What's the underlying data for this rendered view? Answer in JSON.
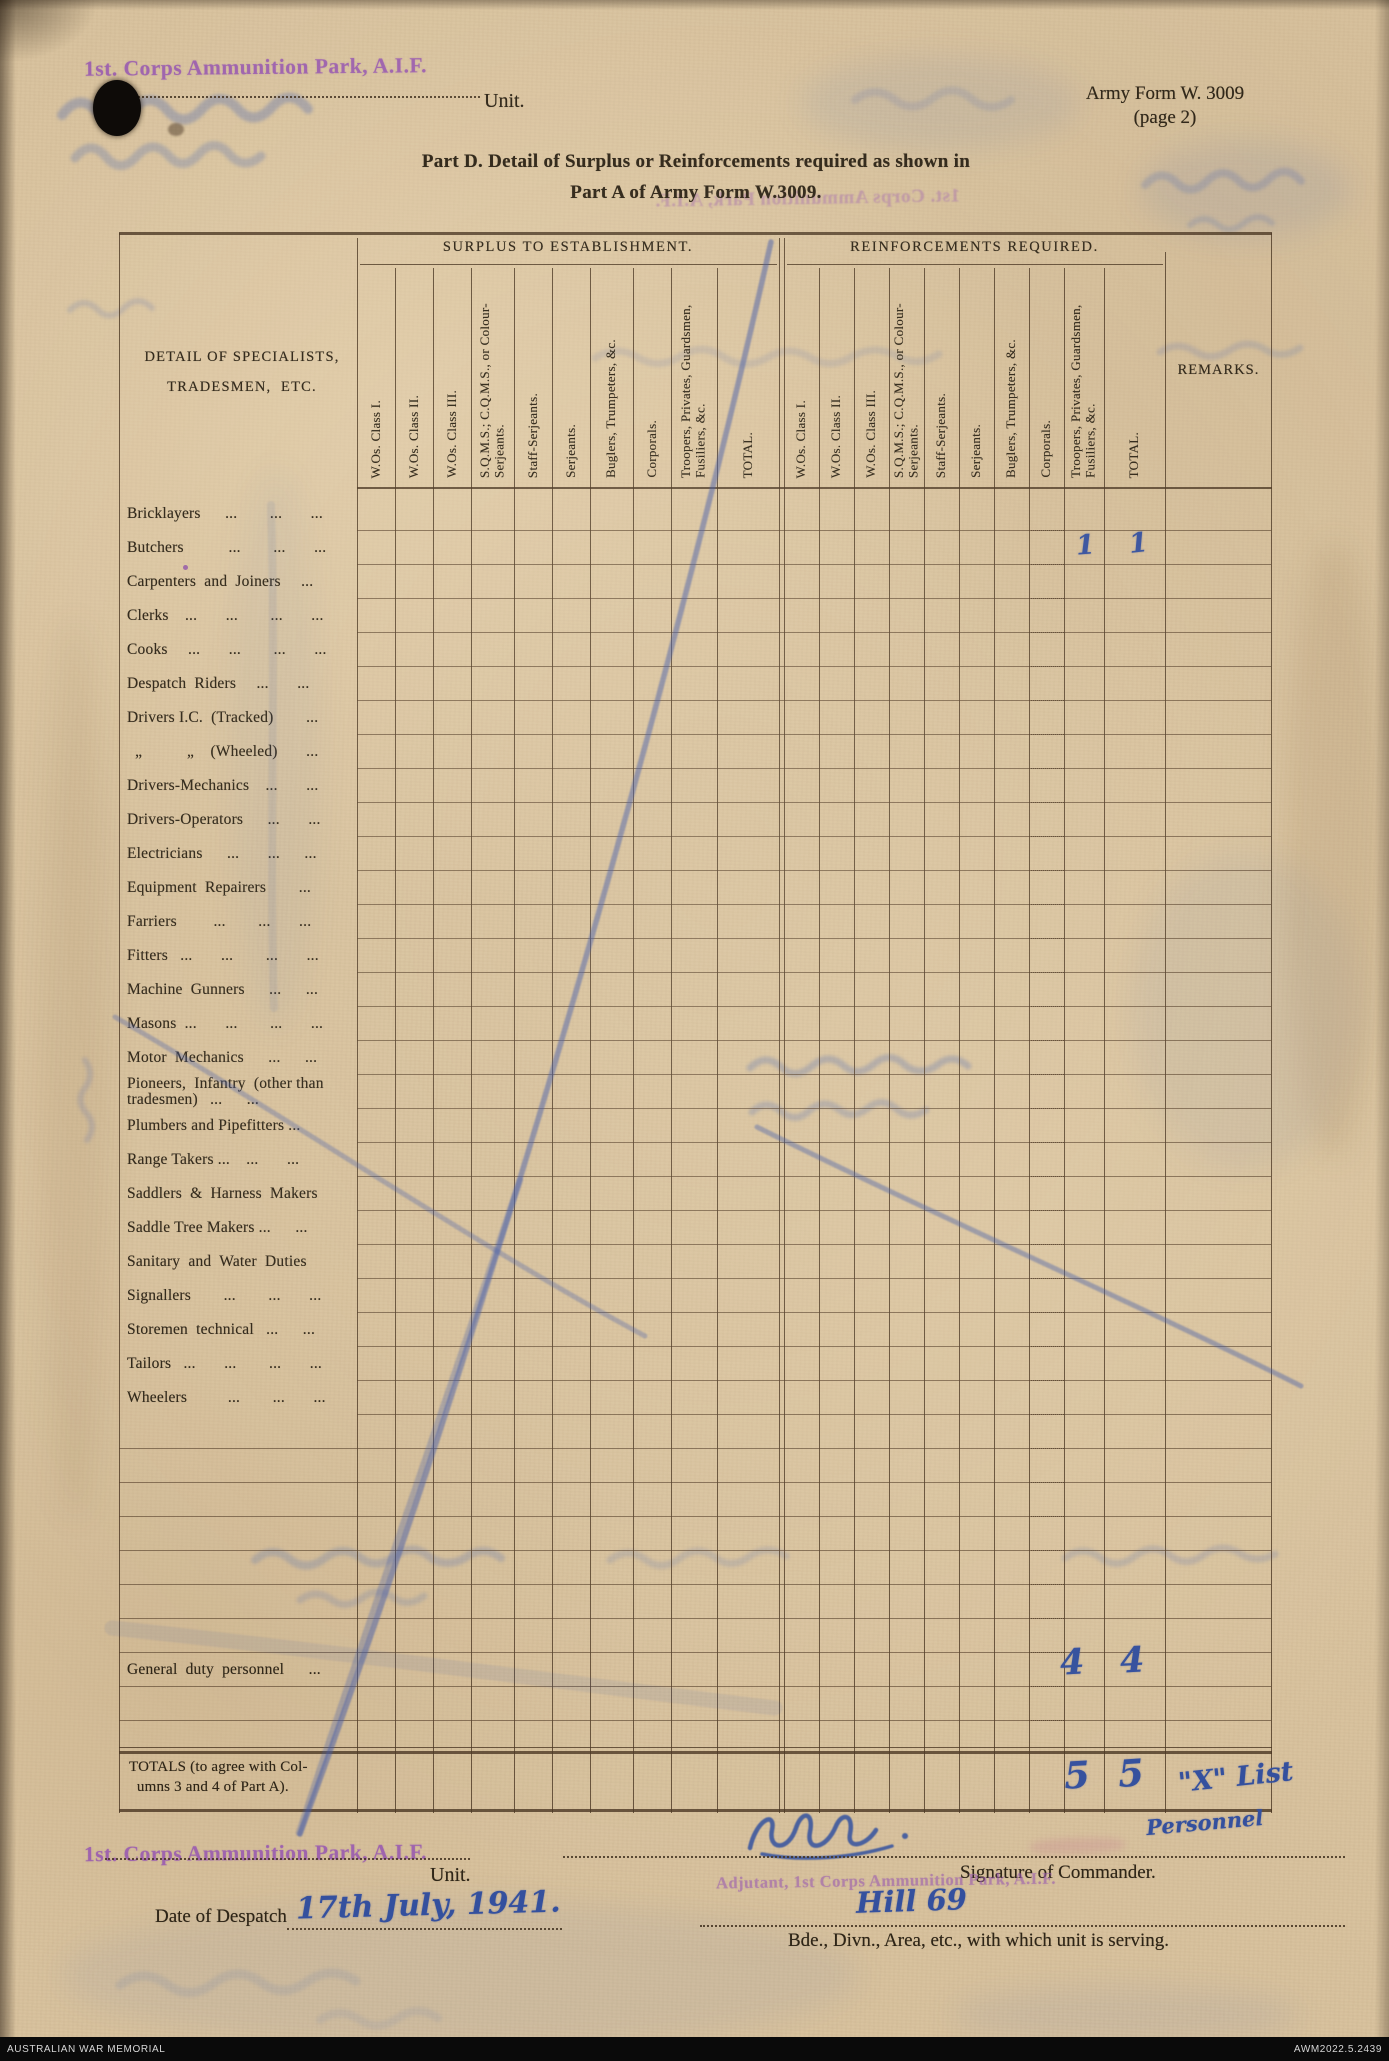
{
  "header": {
    "unit_stamp": "1st. Corps Ammunition Park, A.I.F.",
    "unit_label": "Unit.",
    "form_number": "Army Form W. 3009",
    "form_page": "(page 2)",
    "title_line1": "Part D.  Detail of Surplus or Reinforcements required as shown in",
    "title_line2": "Part A of Army Form W.3009."
  },
  "table": {
    "group_surplus": "SURPLUS TO ESTABLISHMENT.",
    "group_reinforcements": "REINFORCEMENTS REQUIRED.",
    "detail_header": "DETAIL OF SPECIALISTS,\nTRADESMEN,  ETC.",
    "remarks_header": "REMARKS.",
    "columns": [
      "W.Os. Class I.",
      "W.Os. Class II.",
      "W.Os. Class III.",
      "S.Q.M.S.; C.Q.M.S., or Colour-Serjeants.",
      "Staff-Serjeants.",
      "Serjeants.",
      "Buglers, Trumpeters, &c.",
      "Corporals.",
      "Troopers, Privates, Guardsmen, Fusiliers, &c.",
      "TOTAL."
    ],
    "rows": [
      "Bricklayers      ...        ...       ...",
      "Butchers           ...        ...       ...",
      "Carpenters  and  Joiners     ...",
      "Clerks    ...       ...        ...       ...",
      "Cooks     ...       ...        ...       ...",
      "Despatch  Riders     ...       ...",
      "Drivers I.C.  (Tracked)        ...",
      "  „           „    (Wheeled)       ...",
      "Drivers-Mechanics    ...       ...",
      "Drivers-Operators      ...       ...",
      "Electricians      ...       ...      ...",
      "Equipment  Repairers        ...",
      "Farriers         ...        ...       ...",
      "Fitters   ...       ...        ...       ...",
      "Machine  Gunners      ...      ...",
      "Masons  ...       ...        ...       ...",
      "Motor  Mechanics      ...      ...",
      "Pioneers,  Infantry  (other than  tradesmen)   ...      ...",
      "Plumbers and Pipefitters ...",
      "Range Takers ...    ...       ...",
      "Saddlers  &  Harness  Makers",
      "Saddle Tree Makers ...      ...",
      "Sanitary  and  Water  Duties",
      "Signallers        ...        ...       ...",
      "Storemen  technical   ...      ...",
      "Tailors   ...       ...        ...       ...",
      "Wheelers          ...        ...       ..."
    ],
    "general_duty_row": "General  duty  personnel      ...",
    "totals_label": "TOTALS (to agree with Col-\n  umns 3 and 4 of Part A).",
    "entries": {
      "butchers_troopers": "1",
      "butchers_total": "1",
      "general_duty_troopers": "4",
      "general_duty_total": "4",
      "totals_troopers": "5",
      "totals_total": "5",
      "totals_remarks": "\"X\" List",
      "totals_remarks_2": "Personnel"
    }
  },
  "footer": {
    "unit_stamp": "1st. Corps Ammunition Park, A.I.F.",
    "unit_label": "Unit.",
    "signature_label": "Signature of Commander.",
    "adjutant_stamp": "Adjutant, 1st Corps Ammunition Park, A.I.F.",
    "location_value": "Hill 69",
    "serving_label": "Bde., Divn., Area, etc., with which unit is serving.",
    "despatch_label": "Date of Despatch",
    "despatch_value": "17th July, 1941."
  },
  "archive": {
    "left": "AUSTRALIAN WAR MEMORIAL",
    "right": "AWM2022.5.2439"
  },
  "colors": {
    "stamp_purple": "#9a5cb0",
    "pencil_blue": "#3a53a4",
    "paper": "#d8c29e",
    "print_ink": "#2e2517"
  }
}
